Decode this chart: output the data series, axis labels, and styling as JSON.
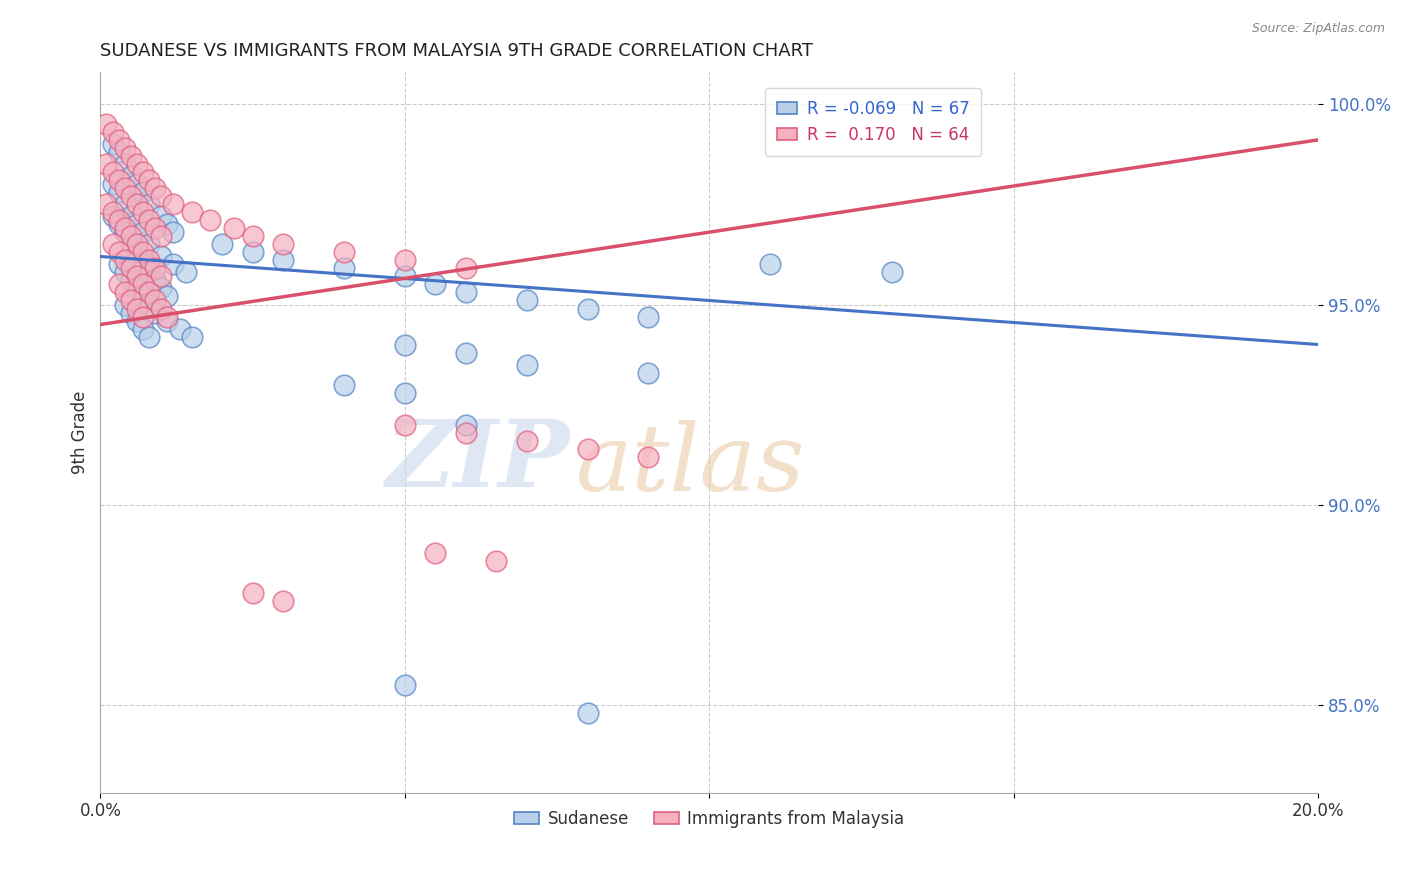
{
  "title": "SUDANESE VS IMMIGRANTS FROM MALAYSIA 9TH GRADE CORRELATION CHART",
  "source_text": "Source: ZipAtlas.com",
  "ylabel": "9th Grade",
  "xlim": [
    0.0,
    0.2
  ],
  "ylim": [
    0.828,
    1.008
  ],
  "xticks": [
    0.0,
    0.05,
    0.1,
    0.15,
    0.2
  ],
  "xticklabels": [
    "0.0%",
    "",
    "",
    "",
    "20.0%"
  ],
  "yticks": [
    0.85,
    0.9,
    0.95,
    1.0
  ],
  "yticklabels": [
    "85.0%",
    "90.0%",
    "95.0%",
    "100.0%"
  ],
  "blue_R": -0.069,
  "blue_N": 67,
  "pink_R": 0.17,
  "pink_N": 64,
  "blue_color": "#b8d0ea",
  "pink_color": "#f5b0c0",
  "blue_edge_color": "#5585c5",
  "pink_edge_color": "#e06080",
  "blue_line_color": "#4472c4",
  "pink_line_color": "#d9506a",
  "legend_label_blue": "Sudanese",
  "legend_label_pink": "Immigrants from Malaysia",
  "blue_scatter_x": [
    0.002,
    0.003,
    0.004,
    0.005,
    0.006,
    0.007,
    0.008,
    0.01,
    0.011,
    0.012,
    0.002,
    0.003,
    0.004,
    0.005,
    0.006,
    0.007,
    0.008,
    0.01,
    0.012,
    0.014,
    0.002,
    0.003,
    0.004,
    0.005,
    0.006,
    0.007,
    0.008,
    0.009,
    0.01,
    0.011,
    0.003,
    0.004,
    0.005,
    0.006,
    0.007,
    0.008,
    0.009,
    0.011,
    0.013,
    0.015,
    0.004,
    0.005,
    0.006,
    0.007,
    0.008,
    0.02,
    0.025,
    0.03,
    0.04,
    0.05,
    0.055,
    0.06,
    0.07,
    0.08,
    0.09,
    0.05,
    0.06,
    0.11,
    0.13,
    0.04,
    0.05,
    0.07,
    0.09,
    0.06,
    0.05,
    0.08
  ],
  "blue_scatter_y": [
    0.99,
    0.988,
    0.985,
    0.982,
    0.98,
    0.978,
    0.975,
    0.972,
    0.97,
    0.968,
    0.98,
    0.978,
    0.975,
    0.972,
    0.97,
    0.968,
    0.965,
    0.962,
    0.96,
    0.958,
    0.972,
    0.97,
    0.968,
    0.965,
    0.963,
    0.96,
    0.958,
    0.956,
    0.954,
    0.952,
    0.96,
    0.958,
    0.956,
    0.954,
    0.952,
    0.95,
    0.948,
    0.946,
    0.944,
    0.942,
    0.95,
    0.948,
    0.946,
    0.944,
    0.942,
    0.965,
    0.963,
    0.961,
    0.959,
    0.957,
    0.955,
    0.953,
    0.951,
    0.949,
    0.947,
    0.94,
    0.938,
    0.96,
    0.958,
    0.93,
    0.928,
    0.935,
    0.933,
    0.92,
    0.855,
    0.848
  ],
  "pink_scatter_x": [
    0.001,
    0.002,
    0.003,
    0.004,
    0.005,
    0.006,
    0.007,
    0.008,
    0.009,
    0.01,
    0.001,
    0.002,
    0.003,
    0.004,
    0.005,
    0.006,
    0.007,
    0.008,
    0.009,
    0.01,
    0.001,
    0.002,
    0.003,
    0.004,
    0.005,
    0.006,
    0.007,
    0.008,
    0.009,
    0.01,
    0.002,
    0.003,
    0.004,
    0.005,
    0.006,
    0.007,
    0.008,
    0.009,
    0.01,
    0.011,
    0.003,
    0.004,
    0.005,
    0.006,
    0.007,
    0.012,
    0.015,
    0.018,
    0.022,
    0.025,
    0.03,
    0.04,
    0.05,
    0.06,
    0.05,
    0.06,
    0.07,
    0.08,
    0.09,
    0.055,
    0.065,
    0.025,
    0.03
  ],
  "pink_scatter_y": [
    0.995,
    0.993,
    0.991,
    0.989,
    0.987,
    0.985,
    0.983,
    0.981,
    0.979,
    0.977,
    0.985,
    0.983,
    0.981,
    0.979,
    0.977,
    0.975,
    0.973,
    0.971,
    0.969,
    0.967,
    0.975,
    0.973,
    0.971,
    0.969,
    0.967,
    0.965,
    0.963,
    0.961,
    0.959,
    0.957,
    0.965,
    0.963,
    0.961,
    0.959,
    0.957,
    0.955,
    0.953,
    0.951,
    0.949,
    0.947,
    0.955,
    0.953,
    0.951,
    0.949,
    0.947,
    0.975,
    0.973,
    0.971,
    0.969,
    0.967,
    0.965,
    0.963,
    0.961,
    0.959,
    0.92,
    0.918,
    0.916,
    0.914,
    0.912,
    0.888,
    0.886,
    0.878,
    0.876
  ]
}
